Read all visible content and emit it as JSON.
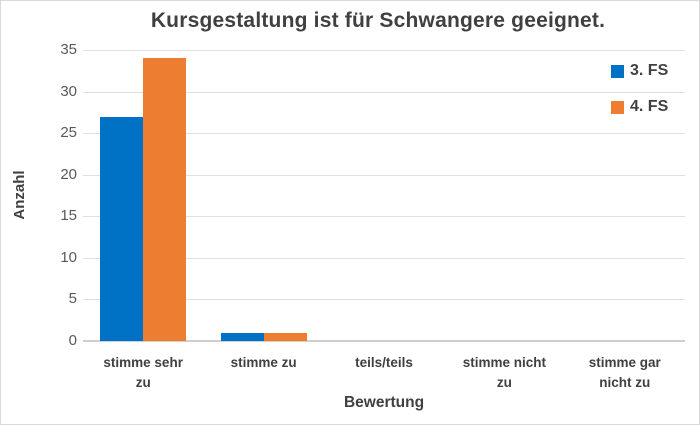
{
  "chart_data": {
    "type": "bar",
    "title": "Kursgestaltung ist für Schwangere geeignet.",
    "xlabel": "Bewertung",
    "ylabel": "Anzahl",
    "categories": [
      "stimme sehr zu",
      "stimme zu",
      "teils/teils",
      "stimme nicht zu",
      "stimme gar nicht zu"
    ],
    "category_label_lines": [
      [
        "stimme sehr",
        "zu"
      ],
      [
        "stimme zu"
      ],
      [
        "teils/teils"
      ],
      [
        "stimme nicht",
        "zu"
      ],
      [
        "stimme gar",
        "nicht zu"
      ]
    ],
    "series": [
      {
        "name": "3. FS",
        "color": "#0072C6",
        "values": [
          27,
          1,
          0,
          0,
          0
        ]
      },
      {
        "name": "4. FS",
        "color": "#ED7D31",
        "values": [
          34,
          1,
          0,
          0,
          0
        ]
      }
    ],
    "ylim": [
      0,
      35
    ],
    "ytick_step": 5,
    "ytick_labels": [
      "0",
      "5",
      "10",
      "15",
      "20",
      "25",
      "30",
      "35"
    ],
    "grid": "horizontal",
    "legend_position": "top-right"
  },
  "colors": {
    "title_text": "#404040",
    "axis_label_text": "#404040",
    "tick_label_text": "#595959",
    "gridline": "#E0E0E0",
    "axis_line": "#CFCFCF",
    "chart_border": "#D9D9D9",
    "background": "#FFFFFF"
  }
}
